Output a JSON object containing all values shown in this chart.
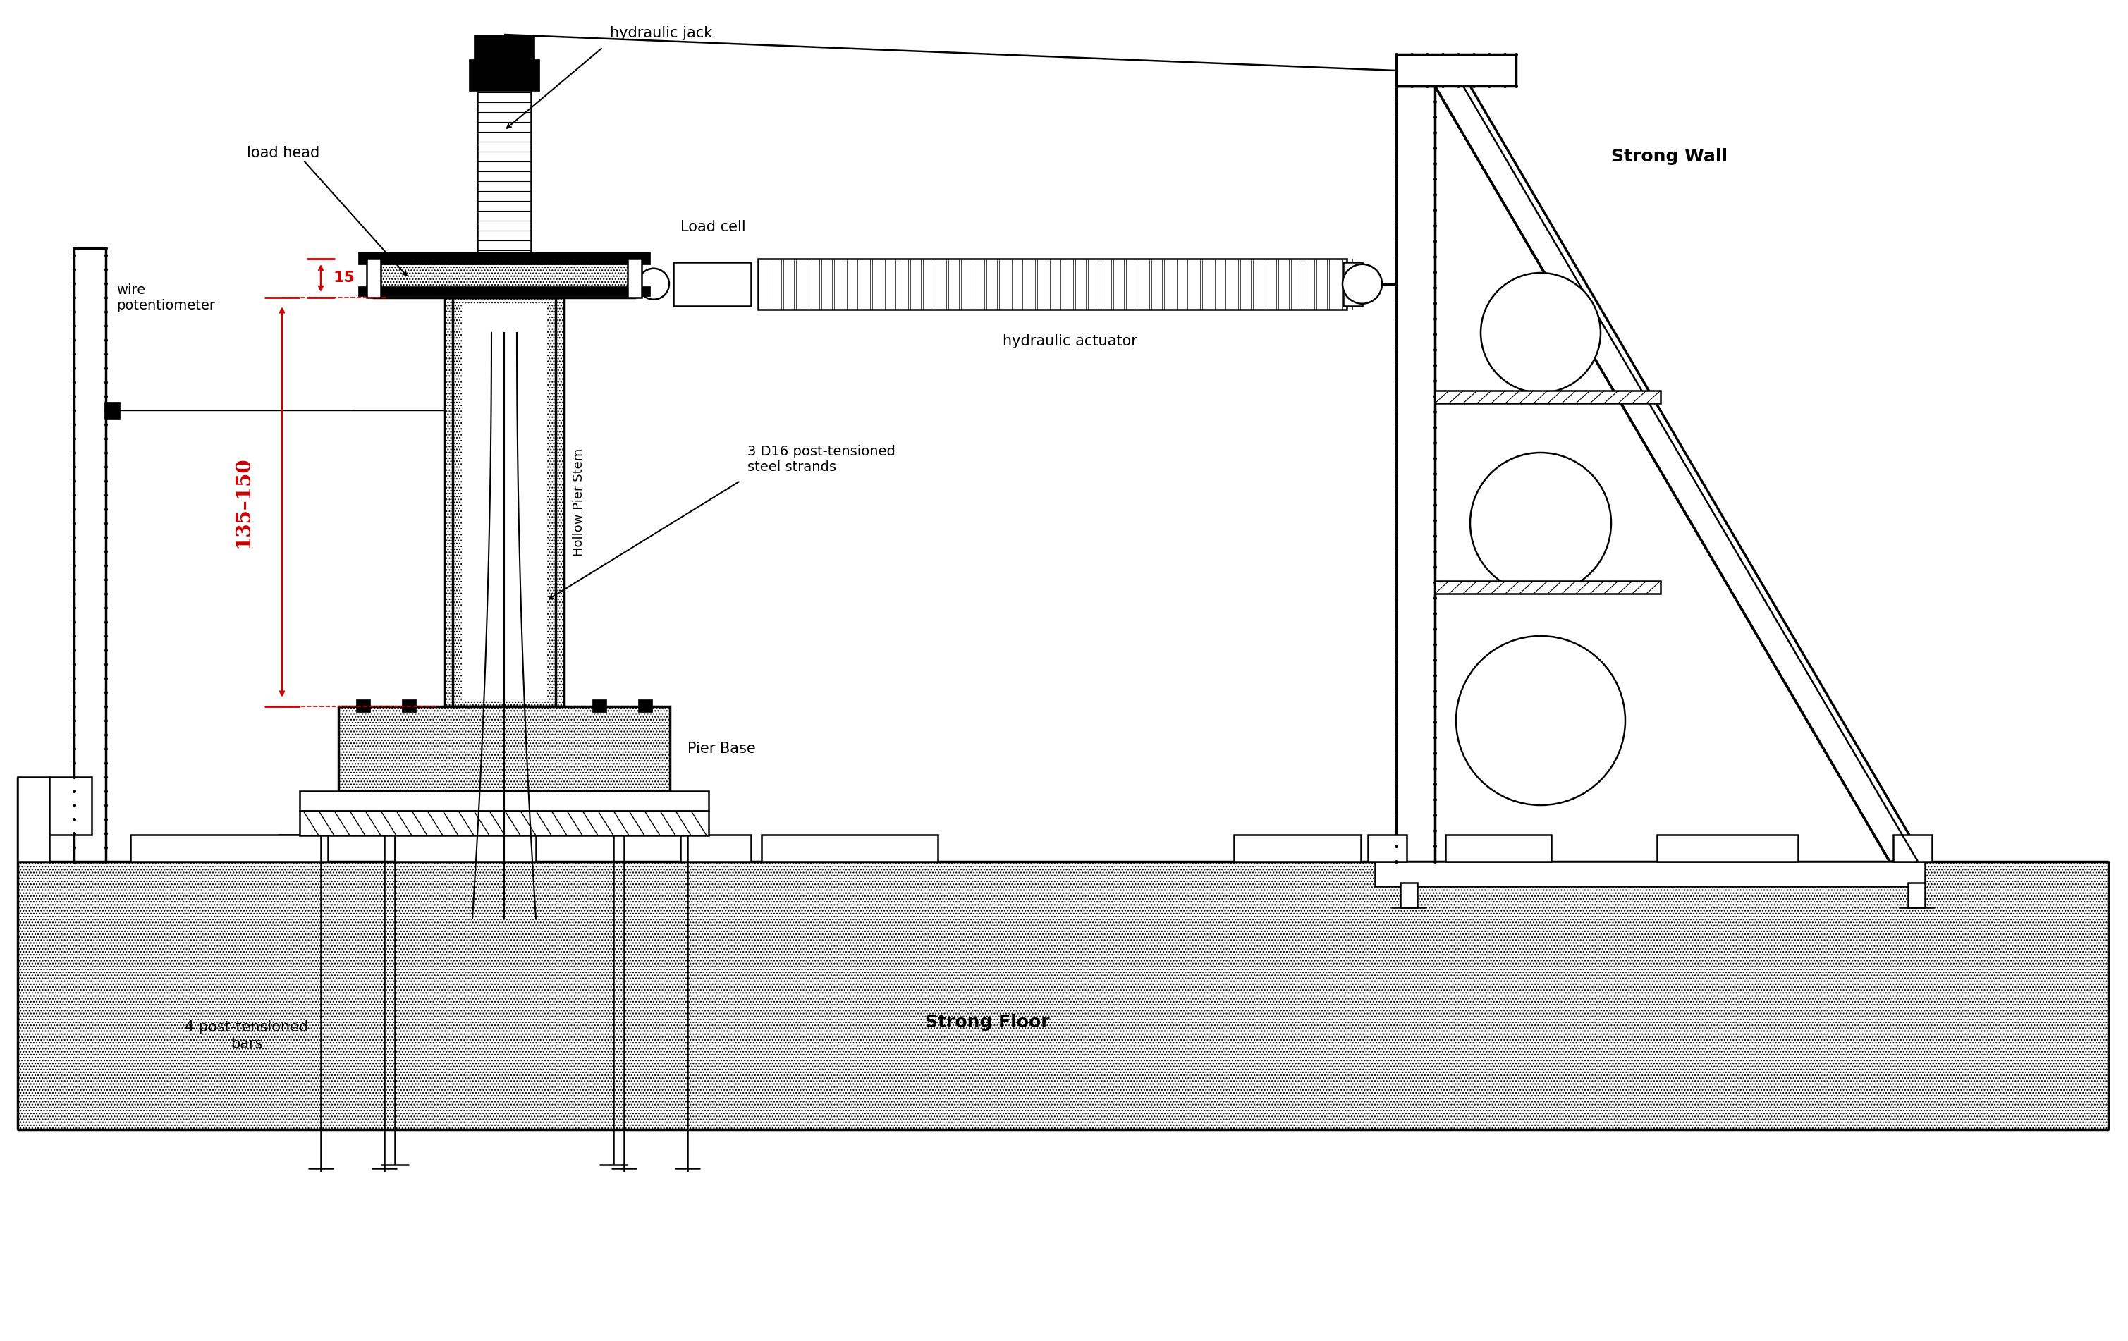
{
  "bg_color": "#ffffff",
  "line_color": "#000000",
  "red_color": "#cc0000",
  "fig_width": 30.18,
  "fig_height": 19.02,
  "labels": {
    "hydraulic_jack": "hydraulic jack",
    "load_head": "load head",
    "wire_potentiometer": "wire\npotentiometer",
    "load_cell": "Load cell",
    "hydraulic_actuator": "hydraulic actuator",
    "strong_wall": "Strong Wall",
    "hollow_pier_stem": "Hollow Pier Stem",
    "steel_strands": "3 D16 post-tensioned\nsteel strands",
    "pier_base": "Pier Base",
    "strong_floor": "Strong Floor",
    "post_tensioned_bars": "4 post-tensioned\nbars",
    "dimension_135_150": "135–150",
    "dimension_15": "15"
  },
  "font_size_labels": 14,
  "font_size_dimension": 20,
  "font_size_large": 16
}
